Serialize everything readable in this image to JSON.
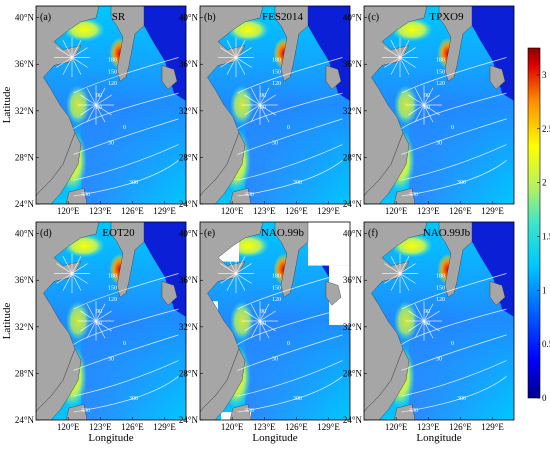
{
  "chart_data": {
    "type": "heatmap",
    "description_free": true,
    "xlabel": "Longitude",
    "ylabel": "Latitude",
    "x_ticks": [
      "120°E",
      "123°E",
      "126°E",
      "129°E"
    ],
    "y_ticks": [
      "40°N",
      "36°N",
      "32°N",
      "28°N",
      "24°N"
    ],
    "xlim": [
      117,
      131
    ],
    "ylim": [
      24,
      41
    ],
    "colorbar": {
      "min": 0,
      "max": 3.25,
      "ticks": [
        "0",
        "0.5",
        "1",
        "1.5",
        "2",
        "2.5",
        "3"
      ],
      "tick_values": [
        0,
        0.5,
        1,
        1.5,
        2,
        2.5,
        3
      ],
      "colors": [
        "#00008b",
        "#0000ff",
        "#0064ff",
        "#00c8ff",
        "#3ce6c8",
        "#b4f064",
        "#ffff00",
        "#ff8c00",
        "#dc0000",
        "#8b0000"
      ]
    },
    "contour_labels": [
      "330",
      "300",
      "180",
      "150",
      "120",
      "90",
      "60",
      "30",
      "0"
    ],
    "panels": [
      {
        "label": "(a)",
        "title": "SR"
      },
      {
        "label": "(b)",
        "title": "FES2014"
      },
      {
        "label": "(c)",
        "title": "TPXO9"
      },
      {
        "label": "(d)",
        "title": "EOT20"
      },
      {
        "label": "(e)",
        "title": "NAO.99b"
      },
      {
        "label": "(f)",
        "title": "NAO.99Jb"
      }
    ]
  },
  "colors": {
    "land": "#a6a6a6",
    "ocean_deep": "#0a1fd6",
    "missing": "#ffffff",
    "contour": "#ffffff"
  }
}
